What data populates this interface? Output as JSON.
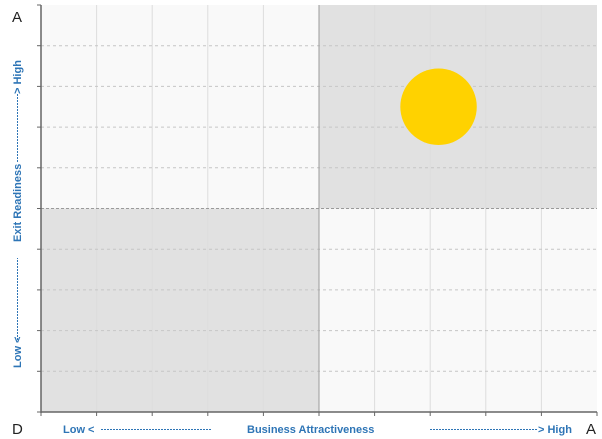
{
  "chart_data": {
    "type": "scatter",
    "title": "",
    "corner_labels": {
      "top_left": "A",
      "bottom_left": "D",
      "bottom_right": "A"
    },
    "x_axis": {
      "low_label": "Low <",
      "title": "Business Attractiveness",
      "high_label": "> High",
      "range": [
        0,
        10
      ]
    },
    "y_axis": {
      "low_label": "Low <",
      "title": "Exit Readiness",
      "high_label": "> High",
      "range": [
        0,
        10
      ]
    },
    "grid": true,
    "quadrants": [
      {
        "name": "top-right",
        "x": [
          5,
          10
        ],
        "y": [
          5,
          10
        ],
        "shaded": true
      },
      {
        "name": "bottom-left",
        "x": [
          0,
          5
        ],
        "y": [
          0,
          5
        ],
        "shaded": true
      }
    ],
    "points": [
      {
        "x": 7.15,
        "y": 7.5,
        "radius": 1.25,
        "color": "#ffd200"
      }
    ],
    "colors": {
      "shade": "#e1e1e1",
      "background": "#f9f9f9",
      "grid_dash": "#c6c6c6",
      "grid_solid": "#dddddd",
      "axis_text": "#2e75b6",
      "marker": "#ffd200"
    }
  }
}
